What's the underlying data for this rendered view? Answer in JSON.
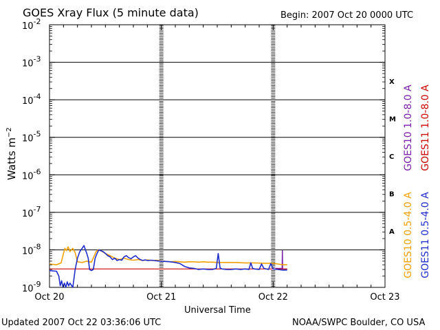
{
  "page": {
    "title": "GOES Xray Flux (5 minute data)",
    "begin": "Begin:  2007 Oct 20 0000 UTC",
    "updated": "Updated 2007 Oct 22 03:36:06 UTC",
    "credit": "NOAA/SWPC Boulder, CO USA"
  },
  "chart_data": {
    "type": "line",
    "title": "GOES Xray Flux (5 minute data)",
    "xlabel": "Universal Time",
    "ylabel": "Watts m⁻²",
    "x_unit": "hours since 2007 Oct 20 0000 UTC",
    "xlim": [
      0,
      72
    ],
    "x_ticks": [
      {
        "x": 0,
        "label": "Oct 20"
      },
      {
        "x": 24,
        "label": "Oct 21"
      },
      {
        "x": 48,
        "label": "Oct 22"
      },
      {
        "x": 72,
        "label": "Oct 23"
      }
    ],
    "y_scale": "log",
    "ylim": [
      1e-09,
      0.01
    ],
    "y_ticks": [
      {
        "exp": -9,
        "label": "10",
        "sup": "-9"
      },
      {
        "exp": -8,
        "label": "10",
        "sup": "-8"
      },
      {
        "exp": -7,
        "label": "10",
        "sup": "-7"
      },
      {
        "exp": -6,
        "label": "10",
        "sup": "-6"
      },
      {
        "exp": -5,
        "label": "10",
        "sup": "-5"
      },
      {
        "exp": -4,
        "label": "10",
        "sup": "-4"
      },
      {
        "exp": -3,
        "label": "10",
        "sup": "-3"
      },
      {
        "exp": -2,
        "label": "10",
        "sup": "-2"
      }
    ],
    "flare_classes": [
      {
        "label": "A",
        "lo": -8,
        "hi": -7
      },
      {
        "label": "B",
        "lo": -7,
        "hi": -6
      },
      {
        "label": "C",
        "lo": -6,
        "hi": -5
      },
      {
        "label": "M",
        "lo": -5,
        "hi": -4
      },
      {
        "label": "X",
        "lo": -4,
        "hi": -3
      }
    ],
    "legend_right_outer": [
      {
        "name": "GOES11 1.0-8.0 A",
        "color": "#cc0000"
      },
      {
        "name": "GOES11 0.5-4.0 A",
        "color": "#1f2ccc"
      }
    ],
    "legend_right_inner": [
      {
        "name": "GOES10 1.0-8.0 A",
        "color": "#7a1fa8"
      },
      {
        "name": "GOES10 0.5-4.0 A",
        "color": "#f0a000"
      }
    ],
    "series": [
      {
        "name": "GOES10 1.0-8.0 A",
        "color": "#7a1fa8",
        "points": [
          [
            48.5,
            3.2e-09
          ],
          [
            49.9,
            3.2e-09
          ],
          [
            49.95,
            9.5e-09
          ],
          [
            50.0,
            9.5e-09
          ],
          [
            50.05,
            3.1e-09
          ],
          [
            51.0,
            3.1e-09
          ]
        ]
      },
      {
        "name": "GOES11 1.0-8.0 A",
        "color": "#cc0000",
        "points": [
          [
            0,
            3.1e-09
          ],
          [
            10,
            3.1e-09
          ],
          [
            20,
            3.1e-09
          ],
          [
            30,
            3.1e-09
          ],
          [
            40,
            3.1e-09
          ],
          [
            50,
            3.1e-09
          ],
          [
            51.0,
            3.1e-09
          ]
        ]
      },
      {
        "name": "GOES10 0.5-4.0 A",
        "color": "#f0a000",
        "points": [
          [
            0,
            4.2e-09
          ],
          [
            1.5,
            4e-09
          ],
          [
            2.5,
            4.5e-09
          ],
          [
            3.0,
            8e-09
          ],
          [
            3.3,
            1.1e-08
          ],
          [
            3.6,
            9.5e-09
          ],
          [
            4.0,
            1.2e-08
          ],
          [
            4.4,
            9e-09
          ],
          [
            5.0,
            1.1e-08
          ],
          [
            5.5,
            8.5e-09
          ],
          [
            6.0,
            4.8e-09
          ],
          [
            7.0,
            4.6e-09
          ],
          [
            8.0,
            5e-09
          ],
          [
            9.0,
            4.7e-09
          ],
          [
            10.0,
            9e-09
          ],
          [
            10.5,
            1e-08
          ],
          [
            11.0,
            9.5e-09
          ],
          [
            12.0,
            8e-09
          ],
          [
            13.0,
            7e-09
          ],
          [
            14.0,
            6e-09
          ],
          [
            15.0,
            5.5e-09
          ],
          [
            16.0,
            6e-09
          ],
          [
            17.0,
            5.5e-09
          ],
          [
            18.0,
            5.3e-09
          ],
          [
            19.0,
            5.5e-09
          ],
          [
            20.0,
            5.2e-09
          ],
          [
            21.0,
            5.4e-09
          ],
          [
            22.0,
            5.2e-09
          ],
          [
            23.0,
            5.3e-09
          ],
          [
            24.0,
            5.1e-09
          ],
          [
            25.0,
            4.9e-09
          ],
          [
            26.0,
            4.8e-09
          ],
          [
            27.0,
            4.9e-09
          ],
          [
            28.0,
            4.8e-09
          ],
          [
            29.0,
            4.7e-09
          ],
          [
            30.0,
            4.8e-09
          ],
          [
            31.0,
            4.8e-09
          ],
          [
            32.0,
            4.7e-09
          ],
          [
            33.0,
            4.8e-09
          ],
          [
            34.0,
            4.7e-09
          ],
          [
            35.0,
            4.7e-09
          ],
          [
            36.0,
            4.6e-09
          ],
          [
            38.0,
            4.6e-09
          ],
          [
            40.0,
            4.6e-09
          ],
          [
            42.0,
            4.5e-09
          ],
          [
            44.0,
            4.5e-09
          ],
          [
            46.0,
            4.4e-09
          ],
          [
            48.0,
            4.4e-09
          ],
          [
            49.0,
            4.2e-09
          ],
          [
            50.0,
            4e-09
          ],
          [
            51.0,
            4e-09
          ]
        ]
      },
      {
        "name": "GOES11 0.5-4.0 A",
        "color": "#1f2ccc",
        "points": [
          [
            0,
            2.8e-09
          ],
          [
            1.5,
            2.7e-09
          ],
          [
            2.0,
            2e-09
          ],
          [
            2.3,
            1.1e-09
          ],
          [
            2.6,
            1.5e-09
          ],
          [
            2.9,
            1e-09
          ],
          [
            3.2,
            1.3e-09
          ],
          [
            3.5,
            1e-09
          ],
          [
            3.8,
            1.4e-09
          ],
          [
            4.1,
            1.1e-09
          ],
          [
            4.4,
            1.3e-09
          ],
          [
            5.0,
            1e-09
          ],
          [
            5.5,
            3e-09
          ],
          [
            6.0,
            6e-09
          ],
          [
            6.5,
            9e-09
          ],
          [
            7.0,
            1.1e-08
          ],
          [
            7.4,
            1.3e-08
          ],
          [
            7.7,
            1e-08
          ],
          [
            8.0,
            8e-09
          ],
          [
            8.3,
            6e-09
          ],
          [
            8.6,
            3e-09
          ],
          [
            9.0,
            2.8e-09
          ],
          [
            9.4,
            3e-09
          ],
          [
            9.8,
            6e-09
          ],
          [
            10.2,
            8e-09
          ],
          [
            10.6,
            1e-08
          ],
          [
            11.0,
            9.5e-09
          ],
          [
            11.5,
            9e-09
          ],
          [
            12.0,
            8e-09
          ],
          [
            12.5,
            7e-09
          ],
          [
            13.0,
            6.5e-09
          ],
          [
            13.5,
            5.5e-09
          ],
          [
            14.0,
            6e-09
          ],
          [
            14.5,
            5.2e-09
          ],
          [
            15.0,
            5.5e-09
          ],
          [
            15.5,
            5.3e-09
          ],
          [
            16.0,
            6.5e-09
          ],
          [
            16.5,
            7e-09
          ],
          [
            17.0,
            6.2e-09
          ],
          [
            17.5,
            5.8e-09
          ],
          [
            18.0,
            6.5e-09
          ],
          [
            18.5,
            7e-09
          ],
          [
            19.0,
            6e-09
          ],
          [
            19.5,
            5.5e-09
          ],
          [
            20.0,
            5.2e-09
          ],
          [
            20.5,
            5.4e-09
          ],
          [
            21.0,
            5.2e-09
          ],
          [
            22.0,
            5.3e-09
          ],
          [
            23.0,
            5.1e-09
          ],
          [
            24.0,
            5e-09
          ],
          [
            25.0,
            4.9e-09
          ],
          [
            26.0,
            4.8e-09
          ],
          [
            27.0,
            4.6e-09
          ],
          [
            28.0,
            4.3e-09
          ],
          [
            29.0,
            3.6e-09
          ],
          [
            30.0,
            3.3e-09
          ],
          [
            31.0,
            3.2e-09
          ],
          [
            32.0,
            3e-09
          ],
          [
            33.0,
            3.1e-09
          ],
          [
            34.0,
            3e-09
          ],
          [
            35.0,
            3e-09
          ],
          [
            35.8,
            3.2e-09
          ],
          [
            36.2,
            8e-09
          ],
          [
            36.6,
            3.3e-09
          ],
          [
            37.0,
            3.1e-09
          ],
          [
            38.0,
            3e-09
          ],
          [
            39.0,
            3e-09
          ],
          [
            40.0,
            3.1e-09
          ],
          [
            41.0,
            3e-09
          ],
          [
            42.0,
            3.1e-09
          ],
          [
            42.8,
            3e-09
          ],
          [
            43.2,
            4.5e-09
          ],
          [
            43.6,
            3.2e-09
          ],
          [
            44.0,
            3.1e-09
          ],
          [
            45.0,
            3e-09
          ],
          [
            45.5,
            4.2e-09
          ],
          [
            46.0,
            3.2e-09
          ],
          [
            47.0,
            3e-09
          ],
          [
            47.5,
            4.3e-09
          ],
          [
            48.0,
            3.1e-09
          ],
          [
            49.0,
            3e-09
          ],
          [
            50.0,
            2.9e-09
          ],
          [
            51.0,
            2.9e-09
          ]
        ]
      }
    ]
  }
}
